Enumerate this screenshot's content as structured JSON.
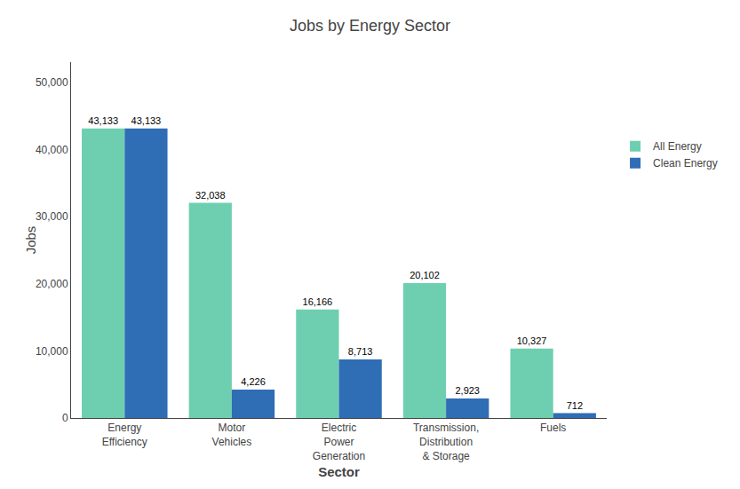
{
  "chart_data": {
    "type": "bar",
    "title": "Jobs by Energy Sector",
    "xlabel": "Sector",
    "ylabel": "Jobs",
    "categories": [
      "Energy\nEfficiency",
      "Motor\nVehicles",
      "Electric\nPower\nGeneration",
      "Transmission,\nDistribution\n& Storage",
      "Fuels"
    ],
    "series": [
      {
        "name": "All Energy",
        "color": "#6ECFB0",
        "values": [
          43133,
          32038,
          16166,
          20102,
          10327
        ],
        "value_labels": [
          "43,133",
          "32,038",
          "16,166",
          "20,102",
          "10,327"
        ]
      },
      {
        "name": "Clean Energy",
        "color": "#2F6DB5",
        "values": [
          43133,
          4226,
          8713,
          2923,
          712
        ],
        "value_labels": [
          "43,133",
          "4,226",
          "8,713",
          "2,923",
          "712"
        ]
      }
    ],
    "ylim": [
      0,
      53000
    ],
    "yticks": [
      0,
      {
        "value": 10000,
        "label": "10,000"
      },
      {
        "value": 20000,
        "label": "20,000"
      },
      {
        "value": 30000,
        "label": "30,000"
      },
      {
        "value": 40000,
        "label": "40,000"
      },
      {
        "value": 50000,
        "label": "50,000"
      }
    ],
    "grid": false,
    "legend": "right",
    "data_labels": true
  }
}
